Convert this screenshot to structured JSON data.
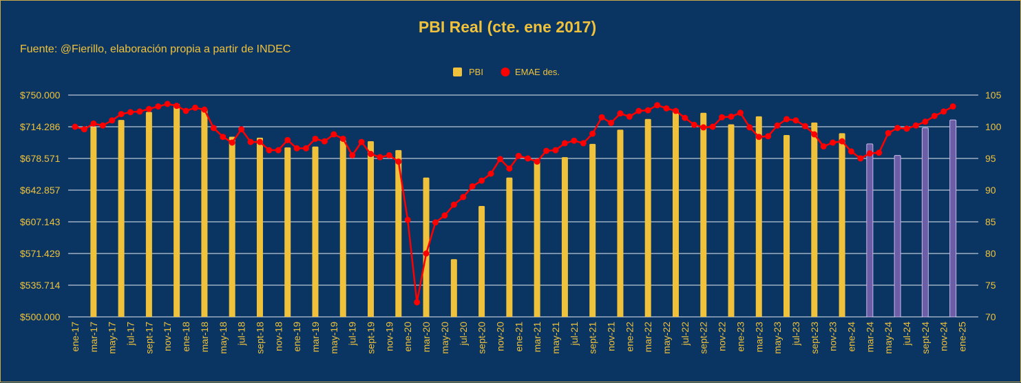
{
  "chart_data": {
    "type": "bar",
    "title": "PBI Real (cte. ene 2017)",
    "subtitle": "Fuente: @Fierillo, elaboración propia a partir de INDEC",
    "colors": {
      "background": "#0a3563",
      "text": "#f0c23b",
      "bar": "#f0c23b",
      "bar_highlight": "#6b5ea6",
      "line": "#ff0000",
      "grid": "#ffffff"
    },
    "legend": {
      "position": "top-center",
      "items": [
        {
          "label": "PBI",
          "marker": "square"
        },
        {
          "label": "EMAE des.",
          "marker": "circle"
        }
      ]
    },
    "y_left": {
      "ylim": [
        500000,
        750000
      ],
      "tick_labels": [
        "$500.000",
        "$535.714",
        "$571.429",
        "$607.143",
        "$642.857",
        "$678.571",
        "$714.286",
        "$750.000"
      ]
    },
    "y_right": {
      "ylim": [
        70,
        105
      ],
      "tick_labels": [
        "70",
        "75",
        "80",
        "85",
        "90",
        "95",
        "100",
        "105"
      ]
    },
    "x_labels": [
      "ene-17",
      "mar-17",
      "may-17",
      "jul-17",
      "sept-17",
      "nov-17",
      "ene-18",
      "mar-18",
      "may-18",
      "jul-18",
      "sept-18",
      "nov-18",
      "ene-19",
      "mar-19",
      "may-19",
      "jul-19",
      "sept-19",
      "nov-19",
      "ene-20",
      "mar-20",
      "may-20",
      "jul-20",
      "sept-20",
      "nov-20",
      "ene-21",
      "mar-21",
      "may-21",
      "jul-21",
      "sept-21",
      "nov-21",
      "ene-22",
      "mar-22",
      "may-22",
      "jul-22",
      "sept-22",
      "nov-22",
      "ene-23",
      "mar-23",
      "may-23",
      "jul-23",
      "sept-23",
      "nov-23",
      "ene-24",
      "mar-24",
      "may-24",
      "jul-24",
      "sept-24",
      "nov-24",
      "ene-25"
    ],
    "month_count": 98,
    "bar_series": {
      "name": "PBI",
      "points": [
        {
          "month_index": 2,
          "value": 714000,
          "highlight": false
        },
        {
          "month_index": 5,
          "value": 722000,
          "highlight": false
        },
        {
          "month_index": 8,
          "value": 731000,
          "highlight": false
        },
        {
          "month_index": 11,
          "value": 740000,
          "highlight": false
        },
        {
          "month_index": 14,
          "value": 734000,
          "highlight": false
        },
        {
          "month_index": 17,
          "value": 703000,
          "highlight": false
        },
        {
          "month_index": 20,
          "value": 702000,
          "highlight": false
        },
        {
          "month_index": 23,
          "value": 691000,
          "highlight": false
        },
        {
          "month_index": 26,
          "value": 692000,
          "highlight": false
        },
        {
          "month_index": 29,
          "value": 699000,
          "highlight": false
        },
        {
          "month_index": 32,
          "value": 698000,
          "highlight": false
        },
        {
          "month_index": 35,
          "value": 688000,
          "highlight": false
        },
        {
          "month_index": 38,
          "value": 657000,
          "highlight": false
        },
        {
          "month_index": 41,
          "value": 565000,
          "highlight": false
        },
        {
          "month_index": 44,
          "value": 625000,
          "highlight": false
        },
        {
          "month_index": 47,
          "value": 657000,
          "highlight": false
        },
        {
          "month_index": 50,
          "value": 676000,
          "highlight": false
        },
        {
          "month_index": 53,
          "value": 680000,
          "highlight": false
        },
        {
          "month_index": 56,
          "value": 695000,
          "highlight": false
        },
        {
          "month_index": 59,
          "value": 711000,
          "highlight": false
        },
        {
          "month_index": 62,
          "value": 723000,
          "highlight": false
        },
        {
          "month_index": 65,
          "value": 734000,
          "highlight": false
        },
        {
          "month_index": 68,
          "value": 730000,
          "highlight": false
        },
        {
          "month_index": 71,
          "value": 717000,
          "highlight": false
        },
        {
          "month_index": 74,
          "value": 726000,
          "highlight": false
        },
        {
          "month_index": 77,
          "value": 705000,
          "highlight": false
        },
        {
          "month_index": 80,
          "value": 719000,
          "highlight": false
        },
        {
          "month_index": 83,
          "value": 707000,
          "highlight": false
        },
        {
          "month_index": 86,
          "value": 695000,
          "highlight": true
        },
        {
          "month_index": 89,
          "value": 682000,
          "highlight": true
        },
        {
          "month_index": 92,
          "value": 713000,
          "highlight": true
        },
        {
          "month_index": 95,
          "value": 722000,
          "highlight": true
        }
      ]
    },
    "line_series": {
      "name": "EMAE des.",
      "values": [
        100.0,
        99.6,
        100.5,
        100.2,
        101.0,
        102.0,
        102.3,
        102.4,
        102.8,
        103.2,
        103.6,
        103.3,
        102.5,
        103.0,
        102.7,
        99.8,
        98.4,
        97.5,
        99.6,
        97.6,
        97.6,
        96.3,
        96.3,
        97.9,
        96.6,
        96.6,
        98.1,
        97.7,
        98.8,
        98.1,
        95.5,
        97.6,
        95.7,
        95.2,
        95.5,
        94.5,
        85.3,
        72.3,
        80.0,
        84.9,
        86.0,
        87.7,
        88.9,
        90.6,
        91.5,
        92.6,
        94.9,
        93.4,
        95.4,
        95.0,
        94.5,
        96.2,
        96.3,
        97.4,
        97.8,
        97.4,
        98.9,
        101.5,
        100.6,
        102.1,
        101.6,
        102.5,
        102.6,
        103.4,
        102.9,
        102.5,
        101.4,
        100.3,
        99.9,
        100.0,
        101.5,
        101.6,
        102.2,
        99.9,
        98.4,
        98.5,
        100.2,
        101.2,
        101.0,
        100.1,
        98.8,
        96.9,
        97.5,
        97.7,
        96.1,
        95.0,
        95.8,
        95.9,
        99.0,
        99.8,
        99.7,
        100.2,
        100.8,
        101.7,
        102.4,
        103.2
      ]
    }
  }
}
